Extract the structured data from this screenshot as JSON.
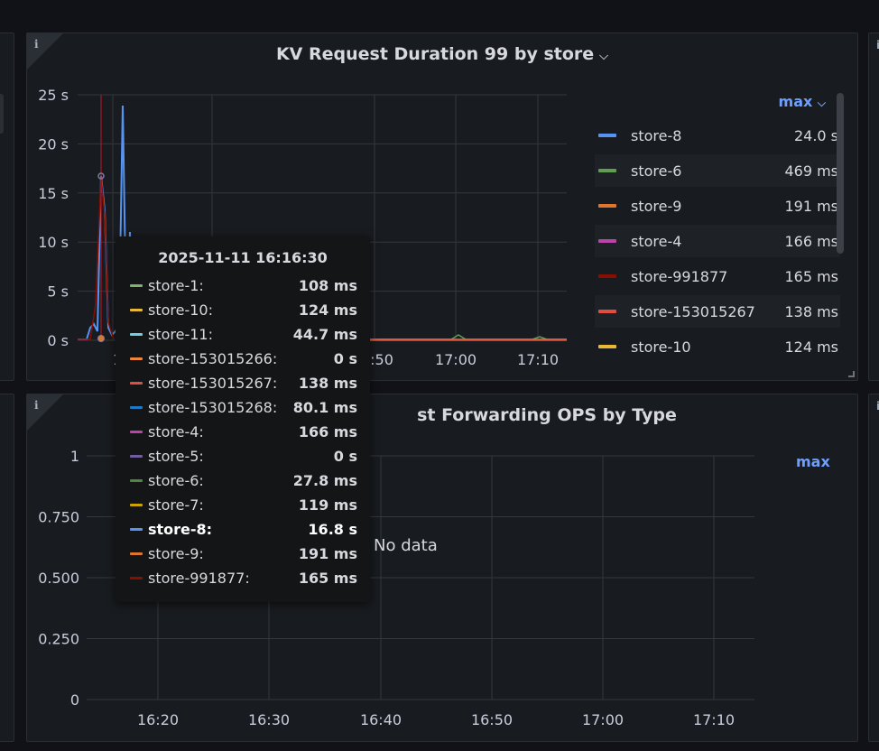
{
  "colors": {
    "accent": "#6e9fff",
    "grid": "#34373e",
    "panel_bg": "#181b1f"
  },
  "panel_top": {
    "title": "KV Request Duration 99 by store",
    "info_icon": "info-icon",
    "legend_sort_label": "max",
    "legend": [
      {
        "name": "store-8",
        "value": "24.0 s",
        "color": "#5794f2"
      },
      {
        "name": "store-6",
        "value": "469 ms",
        "color": "#629e51"
      },
      {
        "name": "store-9",
        "value": "191 ms",
        "color": "#e0752d"
      },
      {
        "name": "store-4",
        "value": "166 ms",
        "color": "#ba43a9"
      },
      {
        "name": "store-991877",
        "value": "165 ms",
        "color": "#890f02"
      },
      {
        "name": "store-153015267",
        "value": "138 ms",
        "color": "#e24d42"
      },
      {
        "name": "store-10",
        "value": "124 ms",
        "color": "#eab839"
      }
    ],
    "y_ticks": [
      "25 s",
      "20 s",
      "15 s",
      "10 s",
      "5 s",
      "0 s"
    ],
    "x_ticks": [
      "1",
      ":50",
      "17:00",
      "17:10"
    ]
  },
  "panel_bottom": {
    "title": "st Forwarding OPS by Type",
    "info_icon": "info-icon",
    "legend_sort_label": "max",
    "no_data": "No data",
    "y_ticks": [
      "1",
      "0.750",
      "0.500",
      "0.250",
      "0"
    ],
    "x_ticks": [
      "16:20",
      "16:30",
      "16:40",
      "16:50",
      "17:00",
      "17:10"
    ]
  },
  "tooltip": {
    "time": "2025-11-11 16:16:30",
    "rows": [
      {
        "name": "store-1:",
        "value": "108 ms",
        "color": "#7eb26d",
        "highlight": false
      },
      {
        "name": "store-10:",
        "value": "124 ms",
        "color": "#eab839",
        "highlight": false
      },
      {
        "name": "store-11:",
        "value": "44.7 ms",
        "color": "#6ed0e0",
        "highlight": false
      },
      {
        "name": "store-153015266:",
        "value": "0 s",
        "color": "#ef843c",
        "highlight": false
      },
      {
        "name": "store-153015267:",
        "value": "138 ms",
        "color": "#e24d42",
        "highlight": false
      },
      {
        "name": "store-153015268:",
        "value": "80.1 ms",
        "color": "#1f78c1",
        "highlight": false
      },
      {
        "name": "store-4:",
        "value": "166 ms",
        "color": "#ba43a9",
        "highlight": false
      },
      {
        "name": "store-5:",
        "value": "0 s",
        "color": "#705da0",
        "highlight": false
      },
      {
        "name": "store-6:",
        "value": "27.8 ms",
        "color": "#508642",
        "highlight": false
      },
      {
        "name": "store-7:",
        "value": "119 ms",
        "color": "#cca300",
        "highlight": false
      },
      {
        "name": "store-8:",
        "value": "16.8 s",
        "color": "#5794f2",
        "highlight": true
      },
      {
        "name": "store-9:",
        "value": "191 ms",
        "color": "#e0752d",
        "highlight": false
      },
      {
        "name": "store-991877:",
        "value": "165 ms",
        "color": "#890f02",
        "highlight": false
      }
    ]
  }
}
